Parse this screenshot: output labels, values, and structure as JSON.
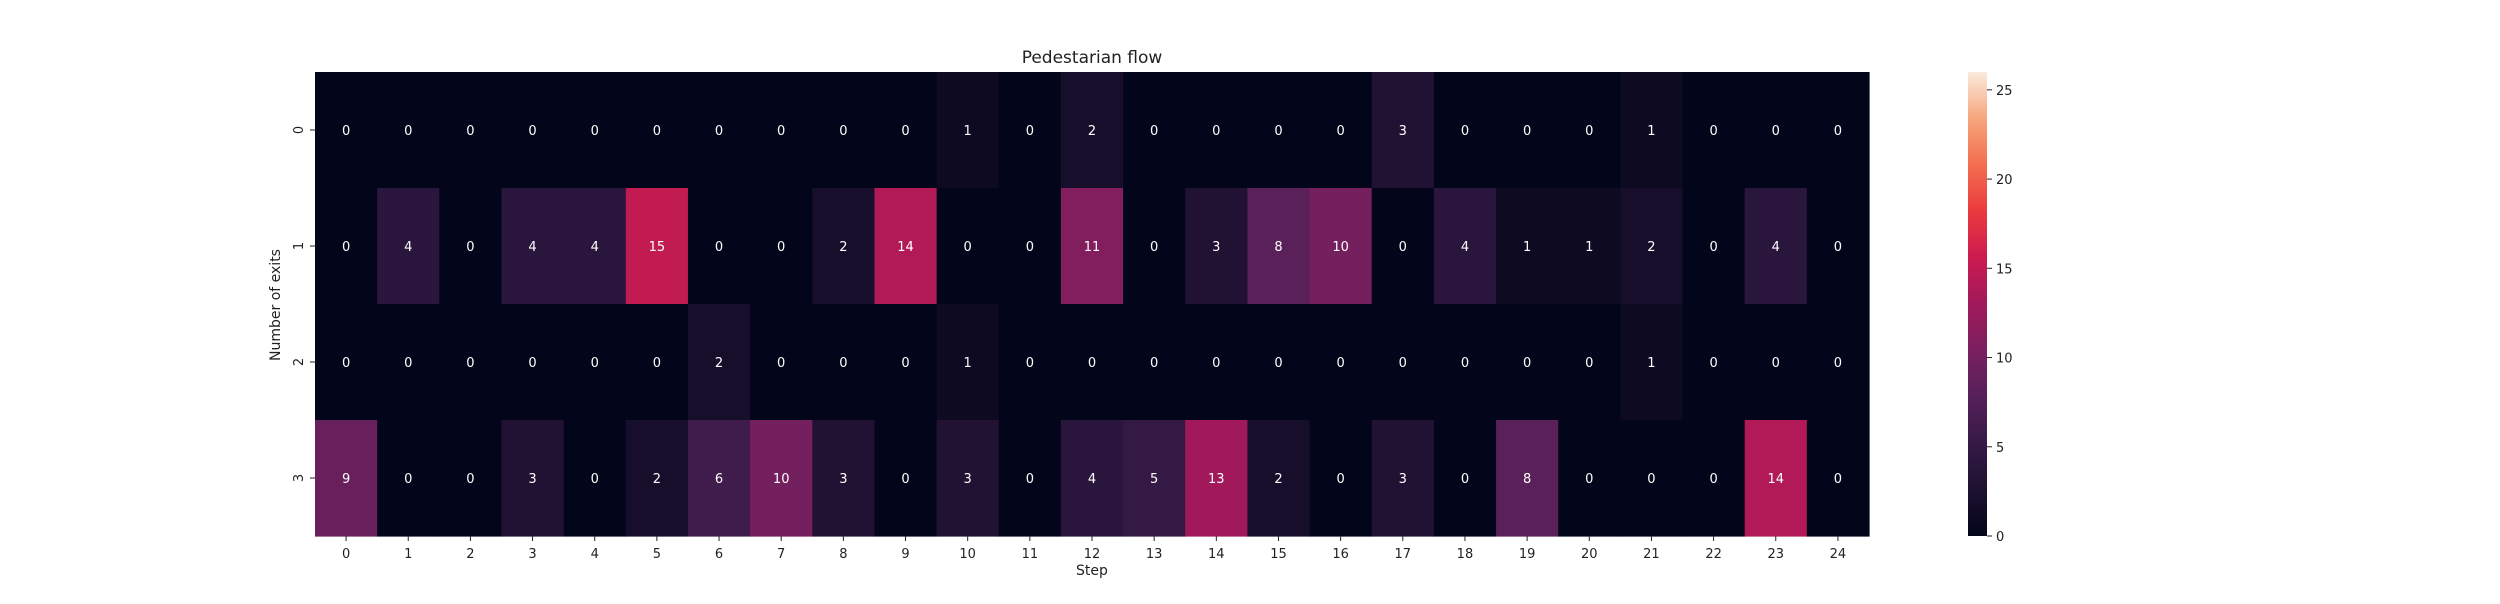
{
  "chart_data": {
    "type": "heatmap",
    "title": "Pedestarian flow",
    "xlabel": "Step",
    "ylabel": "Number of exits",
    "x": [
      0,
      1,
      2,
      3,
      4,
      5,
      6,
      7,
      8,
      9,
      10,
      11,
      12,
      13,
      14,
      15,
      16,
      17,
      18,
      19,
      20,
      21,
      22,
      23,
      24
    ],
    "y": [
      0,
      1,
      2,
      3
    ],
    "values": [
      [
        0,
        0,
        0,
        0,
        0,
        0,
        0,
        0,
        0,
        0,
        1,
        0,
        2,
        0,
        0,
        0,
        0,
        3,
        0,
        0,
        0,
        1,
        0,
        0,
        0
      ],
      [
        0,
        4,
        0,
        4,
        4,
        15,
        0,
        0,
        2,
        14,
        0,
        0,
        11,
        0,
        3,
        8,
        10,
        0,
        4,
        1,
        1,
        2,
        0,
        4,
        0
      ],
      [
        0,
        0,
        0,
        0,
        0,
        0,
        2,
        0,
        0,
        0,
        1,
        0,
        0,
        0,
        0,
        0,
        0,
        0,
        0,
        0,
        0,
        1,
        0,
        0,
        0
      ],
      [
        9,
        0,
        0,
        3,
        0,
        2,
        6,
        10,
        3,
        0,
        3,
        0,
        4,
        5,
        13,
        2,
        0,
        3,
        0,
        8,
        0,
        0,
        0,
        14,
        0
      ]
    ],
    "colorbar": {
      "range": [
        0,
        26
      ],
      "ticks": [
        0,
        5,
        10,
        15,
        20,
        25
      ]
    },
    "colormap": "rocket",
    "annotations": true,
    "grid": false
  }
}
